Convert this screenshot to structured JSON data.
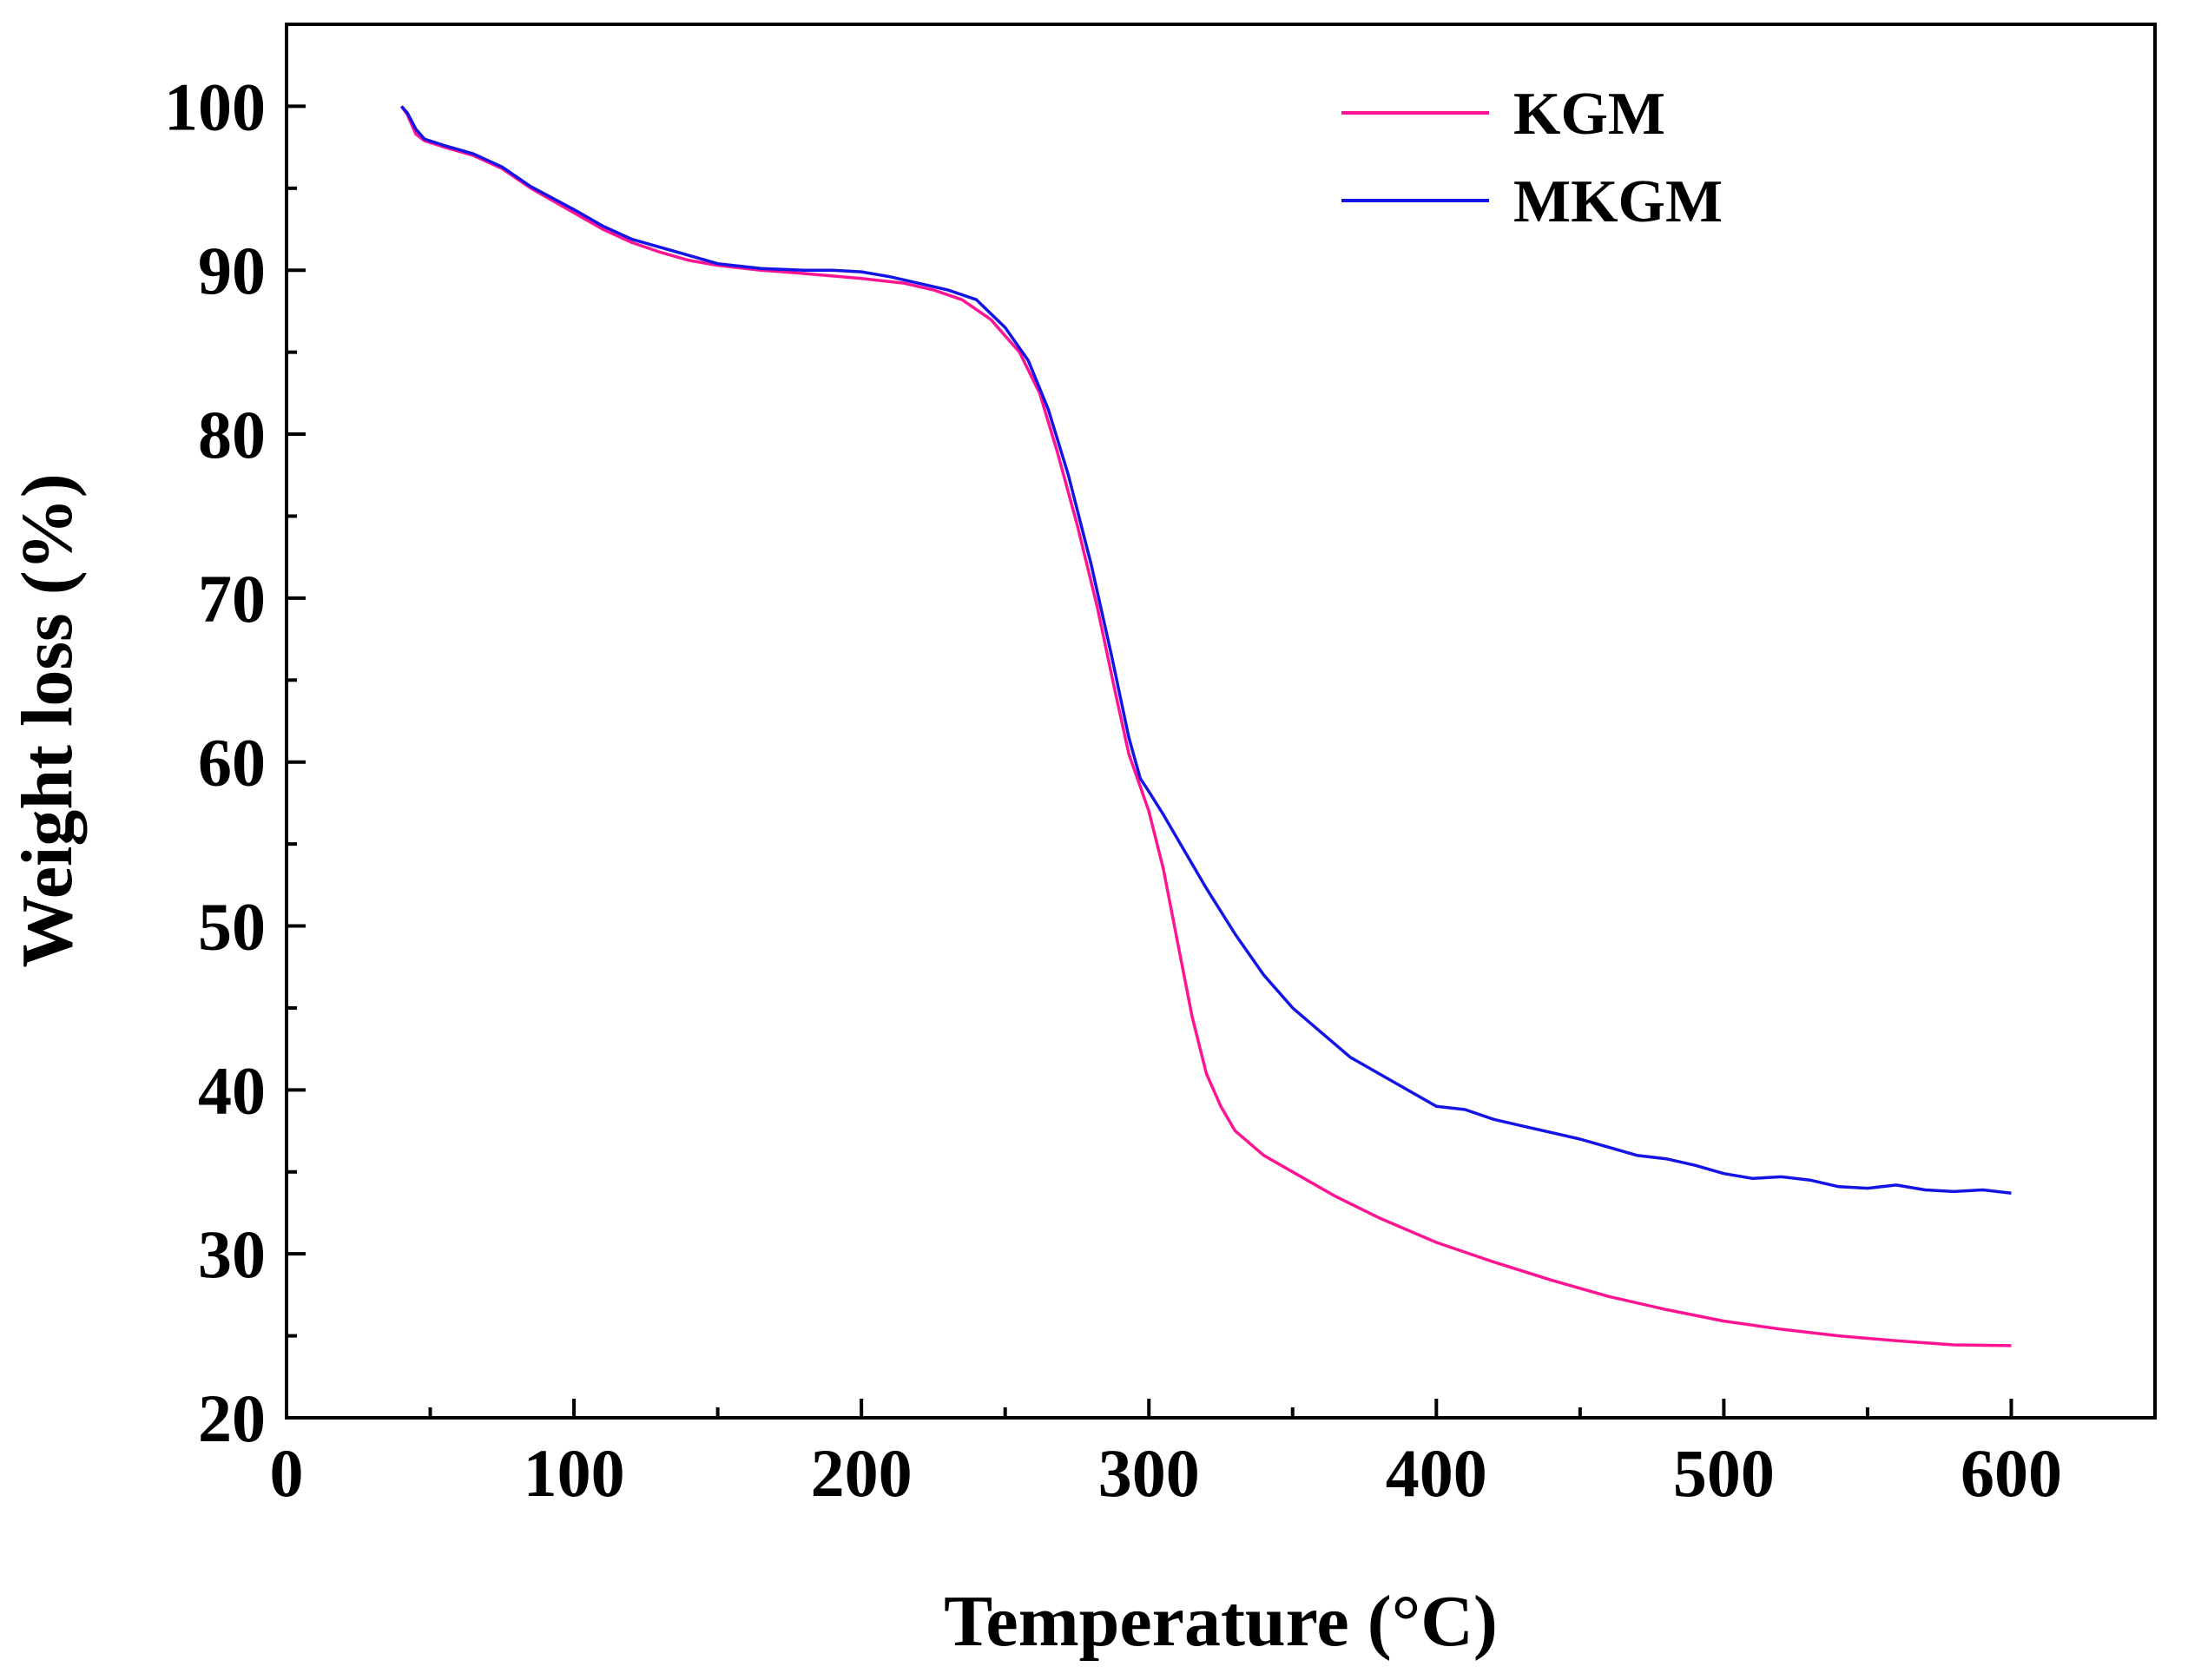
{
  "chart_data": {
    "type": "line",
    "title": "",
    "xlabel": "Temperature (°C)",
    "ylabel": "Weight loss (%)",
    "xlim": [
      0,
      650
    ],
    "ylim": [
      20,
      105
    ],
    "x_ticks": [
      0,
      100,
      200,
      300,
      400,
      500,
      600
    ],
    "y_ticks": [
      20,
      30,
      40,
      50,
      60,
      70,
      80,
      90,
      100
    ],
    "x_minor_step": 50,
    "y_minor_step": 5,
    "grid": false,
    "legend_position": "top-right",
    "series": [
      {
        "name": "KGM",
        "color": "#ff1493",
        "points": [
          [
            40,
            100
          ],
          [
            42,
            99.5
          ],
          [
            45,
            98.3
          ],
          [
            48,
            97.9
          ],
          [
            55,
            97.5
          ],
          [
            65,
            97.0
          ],
          [
            75,
            96.2
          ],
          [
            85,
            95.0
          ],
          [
            100,
            93.5
          ],
          [
            110,
            92.5
          ],
          [
            120,
            91.7
          ],
          [
            130,
            91.1
          ],
          [
            140,
            90.6
          ],
          [
            150,
            90.3
          ],
          [
            165,
            90.0
          ],
          [
            180,
            89.8
          ],
          [
            200,
            89.5
          ],
          [
            215,
            89.2
          ],
          [
            225,
            88.8
          ],
          [
            235,
            88.2
          ],
          [
            245,
            87.0
          ],
          [
            255,
            85.0
          ],
          [
            262,
            82.5
          ],
          [
            268,
            79.0
          ],
          [
            275,
            74.5
          ],
          [
            282,
            69.5
          ],
          [
            288,
            64.5
          ],
          [
            293,
            60.5
          ],
          [
            297,
            58.5
          ],
          [
            300,
            57.0
          ],
          [
            305,
            53.5
          ],
          [
            310,
            49.0
          ],
          [
            315,
            44.5
          ],
          [
            320,
            41.0
          ],
          [
            325,
            39.0
          ],
          [
            330,
            37.5
          ],
          [
            340,
            36.0
          ],
          [
            350,
            35.0
          ],
          [
            365,
            33.5
          ],
          [
            380,
            32.2
          ],
          [
            400,
            30.7
          ],
          [
            420,
            29.5
          ],
          [
            440,
            28.4
          ],
          [
            460,
            27.4
          ],
          [
            480,
            26.6
          ],
          [
            500,
            25.9
          ],
          [
            520,
            25.4
          ],
          [
            540,
            25.0
          ],
          [
            560,
            24.7
          ],
          [
            580,
            24.45
          ],
          [
            600,
            24.4
          ]
        ]
      },
      {
        "name": "MKGM",
        "color": "#1414e6",
        "points": [
          [
            40,
            100
          ],
          [
            42,
            99.6
          ],
          [
            45,
            98.6
          ],
          [
            48,
            98.0
          ],
          [
            55,
            97.6
          ],
          [
            65,
            97.1
          ],
          [
            75,
            96.3
          ],
          [
            85,
            95.1
          ],
          [
            100,
            93.7
          ],
          [
            110,
            92.7
          ],
          [
            120,
            91.9
          ],
          [
            130,
            91.4
          ],
          [
            140,
            90.9
          ],
          [
            150,
            90.4
          ],
          [
            165,
            90.1
          ],
          [
            180,
            90.0
          ],
          [
            190,
            90.0
          ],
          [
            200,
            89.9
          ],
          [
            210,
            89.6
          ],
          [
            220,
            89.2
          ],
          [
            230,
            88.8
          ],
          [
            240,
            88.2
          ],
          [
            250,
            86.5
          ],
          [
            258,
            84.5
          ],
          [
            265,
            81.5
          ],
          [
            272,
            77.5
          ],
          [
            280,
            72.0
          ],
          [
            287,
            66.5
          ],
          [
            293,
            61.5
          ],
          [
            297,
            59.0
          ],
          [
            300,
            58.2
          ],
          [
            305,
            56.8
          ],
          [
            310,
            55.3
          ],
          [
            320,
            52.3
          ],
          [
            330,
            49.5
          ],
          [
            340,
            47.0
          ],
          [
            350,
            45.0
          ],
          [
            360,
            43.5
          ],
          [
            370,
            42.0
          ],
          [
            380,
            41.0
          ],
          [
            390,
            40.0
          ],
          [
            400,
            39.0
          ],
          [
            410,
            38.8
          ],
          [
            420,
            38.2
          ],
          [
            430,
            37.8
          ],
          [
            440,
            37.4
          ],
          [
            450,
            37.0
          ],
          [
            460,
            36.5
          ],
          [
            470,
            36.0
          ],
          [
            480,
            35.8
          ],
          [
            490,
            35.4
          ],
          [
            500,
            34.9
          ],
          [
            510,
            34.6
          ],
          [
            520,
            34.7
          ],
          [
            530,
            34.5
          ],
          [
            540,
            34.1
          ],
          [
            550,
            34.0
          ],
          [
            560,
            34.2
          ],
          [
            570,
            33.9
          ],
          [
            580,
            33.8
          ],
          [
            590,
            33.9
          ],
          [
            600,
            33.7
          ]
        ]
      }
    ]
  }
}
